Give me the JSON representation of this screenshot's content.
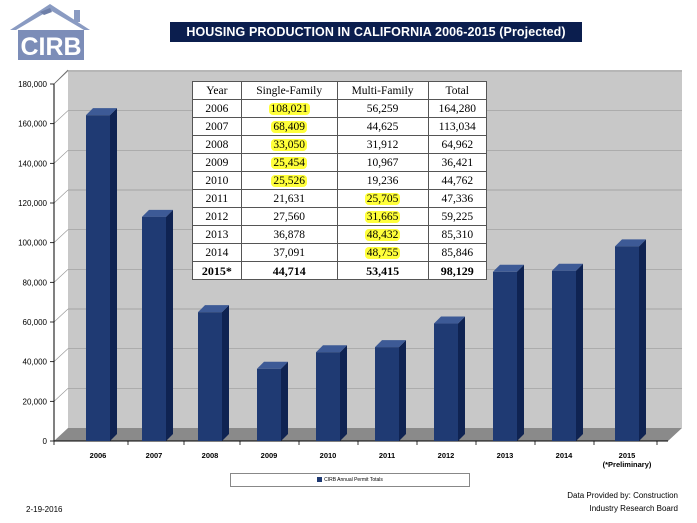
{
  "logo": {
    "text": "CIRB"
  },
  "title": "HOUSING PRODUCTION IN CALIFORNIA 2006-2015 (Projected)",
  "chart_data": {
    "type": "bar",
    "categories": [
      "2006",
      "2007",
      "2008",
      "2009",
      "2010",
      "2011",
      "2012",
      "2013",
      "2014",
      "2015"
    ],
    "x_tick_labels": [
      "2006",
      "2007",
      "2008",
      "2009",
      "2010",
      "2011",
      "2012",
      "2013",
      "2014",
      "2015"
    ],
    "x_tick_sub": [
      "",
      "",
      "",
      "",
      "",
      "",
      "",
      "",
      "",
      "(*Preliminary)"
    ],
    "values": [
      164280,
      113034,
      64962,
      36421,
      44762,
      47336,
      59225,
      85310,
      85846,
      98129
    ],
    "ylim": [
      0,
      180000
    ],
    "y_ticks": [
      "0",
      "20,000",
      "40,000",
      "60,000",
      "80,000",
      "100,000",
      "120,000",
      "140,000",
      "160,000",
      "180,000"
    ],
    "grid": true,
    "legend": {
      "position": "bottom",
      "entries": [
        "CIRB Annual Permit Totals"
      ]
    },
    "colors": {
      "bar": "#1f3a73",
      "bar_side": "#0f2352",
      "bar_top": "#3d5a96"
    },
    "table": {
      "headers": [
        "Year",
        "Single-Family",
        "Multi-Family",
        "Total"
      ],
      "rows": [
        [
          "2006",
          "108,021",
          "56,259",
          "164,280"
        ],
        [
          "2007",
          "68,409",
          "44,625",
          "113,034"
        ],
        [
          "2008",
          "33,050",
          "31,912",
          "64,962"
        ],
        [
          "2009",
          "25,454",
          "10,967",
          "36,421"
        ],
        [
          "2010",
          "25,526",
          "19,236",
          "44,762"
        ],
        [
          "2011",
          "21,631",
          "25,705",
          "47,336"
        ],
        [
          "2012",
          "27,560",
          "31,665",
          "59,225"
        ],
        [
          "2013",
          "36,878",
          "48,432",
          "85,310"
        ],
        [
          "2014",
          "37,091",
          "48,755",
          "85,846"
        ],
        [
          "2015*",
          "44,714",
          "53,415",
          "98,129"
        ]
      ]
    }
  },
  "footer": {
    "date": "2-19-2016",
    "credit_line1": "Data Provided by: Construction",
    "credit_line2": "Industry Research Board"
  }
}
